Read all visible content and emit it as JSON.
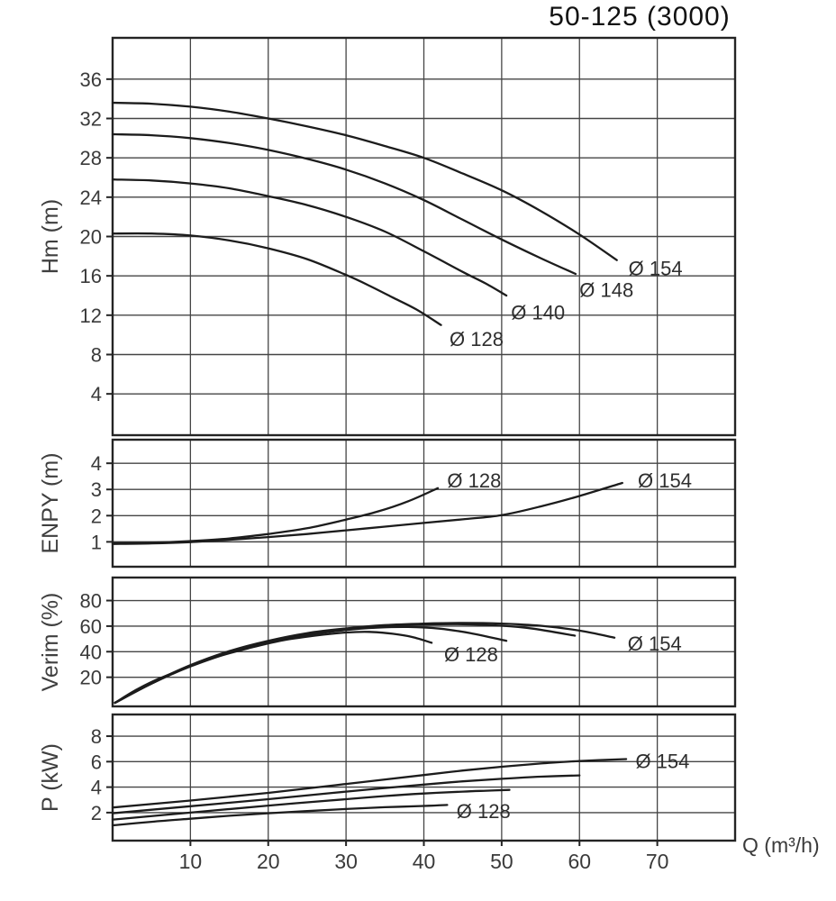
{
  "title": "50-125 (3000)",
  "x_axis": {
    "label": "Q (m³/h)",
    "ticks": [
      10,
      20,
      30,
      40,
      50,
      60,
      70
    ],
    "lim": [
      0,
      80
    ]
  },
  "colors": {
    "curve": "#1c1c1c",
    "grid": "#454545",
    "border": "#242424",
    "text": "#3a3a3a",
    "label": "#2e2e2e"
  },
  "chart_data": {
    "type": "line",
    "title": "50-125 (3000)",
    "xlabel": "Q (m³/h)",
    "xlim": [
      0,
      80
    ],
    "x_ticks": [
      10,
      20,
      30,
      40,
      50,
      60,
      70
    ],
    "panels": [
      {
        "id": "head",
        "ylabel": "Hm (m)",
        "yticks": [
          4,
          8,
          12,
          16,
          20,
          24,
          28,
          32,
          36
        ],
        "ylim": [
          -0.2,
          40.2
        ],
        "series": [
          {
            "name": "Ø 154",
            "points": [
              [
                0,
                33.6
              ],
              [
                5,
                33.5
              ],
              [
                10,
                33.2
              ],
              [
                15,
                32.7
              ],
              [
                20,
                32.0
              ],
              [
                25,
                31.2
              ],
              [
                30,
                30.3
              ],
              [
                35,
                29.2
              ],
              [
                40,
                28.0
              ],
              [
                45,
                26.4
              ],
              [
                50,
                24.7
              ],
              [
                55,
                22.6
              ],
              [
                60,
                20.2
              ],
              [
                64.8,
                17.6
              ]
            ],
            "label": {
              "text": "Ø 154",
              "x": 66.3,
              "y": 16.8
            }
          },
          {
            "name": "Ø 148",
            "points": [
              [
                0,
                30.4
              ],
              [
                5,
                30.3
              ],
              [
                10,
                30.0
              ],
              [
                15,
                29.5
              ],
              [
                20,
                28.8
              ],
              [
                25,
                27.9
              ],
              [
                30,
                26.8
              ],
              [
                35,
                25.4
              ],
              [
                40,
                23.7
              ],
              [
                45,
                21.7
              ],
              [
                50,
                19.7
              ],
              [
                55,
                17.8
              ],
              [
                59.5,
                16.2
              ]
            ],
            "label": {
              "text": "Ø 148",
              "x": 60.0,
              "y": 14.6
            }
          },
          {
            "name": "Ø 140",
            "points": [
              [
                0,
                25.8
              ],
              [
                5,
                25.7
              ],
              [
                10,
                25.4
              ],
              [
                15,
                24.9
              ],
              [
                20,
                24.1
              ],
              [
                25,
                23.2
              ],
              [
                30,
                22.0
              ],
              [
                35,
                20.5
              ],
              [
                40,
                18.5
              ],
              [
                45,
                16.4
              ],
              [
                48,
                15.2
              ],
              [
                50.6,
                14.0
              ]
            ],
            "label": {
              "text": "Ø 140",
              "x": 51.2,
              "y": 12.3
            }
          },
          {
            "name": "Ø 128",
            "points": [
              [
                0,
                20.3
              ],
              [
                5,
                20.3
              ],
              [
                10,
                20.1
              ],
              [
                15,
                19.6
              ],
              [
                20,
                18.8
              ],
              [
                25,
                17.7
              ],
              [
                30,
                16.1
              ],
              [
                33,
                15.0
              ],
              [
                36,
                13.8
              ],
              [
                39,
                12.6
              ],
              [
                42.2,
                11.0
              ]
            ],
            "label": {
              "text": "Ø 128",
              "x": 43.3,
              "y": 9.6
            }
          }
        ]
      },
      {
        "id": "npsh",
        "ylabel": "ENPY (m)",
        "yticks": [
          1,
          2,
          3,
          4
        ],
        "ylim": [
          0.05,
          4.9
        ],
        "series": [
          {
            "name": "Ø 128",
            "points": [
              [
                0,
                0.95
              ],
              [
                5,
                0.97
              ],
              [
                10,
                1.03
              ],
              [
                15,
                1.13
              ],
              [
                20,
                1.3
              ],
              [
                25,
                1.52
              ],
              [
                30,
                1.85
              ],
              [
                34,
                2.15
              ],
              [
                38,
                2.55
              ],
              [
                41.8,
                3.05
              ]
            ],
            "label": {
              "text": "Ø 128",
              "x": 43.0,
              "y": 3.35
            }
          },
          {
            "name": "Ø 154",
            "points": [
              [
                0,
                0.92
              ],
              [
                5,
                0.94
              ],
              [
                10,
                0.99
              ],
              [
                15,
                1.08
              ],
              [
                20,
                1.18
              ],
              [
                25,
                1.3
              ],
              [
                30,
                1.44
              ],
              [
                35,
                1.58
              ],
              [
                40,
                1.72
              ],
              [
                45,
                1.86
              ],
              [
                50,
                2.02
              ],
              [
                55,
                2.35
              ],
              [
                60,
                2.75
              ],
              [
                65.5,
                3.25
              ]
            ],
            "label": {
              "text": "Ø 154",
              "x": 67.5,
              "y": 3.35
            }
          }
        ]
      },
      {
        "id": "efficiency",
        "ylabel": "Verim (%)",
        "yticks": [
          20,
          40,
          60,
          80
        ],
        "ylim": [
          -2.8,
          98
        ],
        "series": [
          {
            "name": "Ø 128",
            "points": [
              [
                0.3,
                0
              ],
              [
                3,
                10
              ],
              [
                6,
                19
              ],
              [
                10,
                28.5
              ],
              [
                14,
                37
              ],
              [
                18,
                43.5
              ],
              [
                22,
                49
              ],
              [
                26,
                52.5
              ],
              [
                30,
                55
              ],
              [
                33,
                55.5
              ],
              [
                36,
                54
              ],
              [
                38.5,
                51.5
              ],
              [
                41,
                47
              ]
            ],
            "label": {
              "text": "Ø 128",
              "x": 42.6,
              "y": 38
            }
          },
          {
            "name": "Ø 140",
            "points": [
              [
                0.3,
                0
              ],
              [
                5,
                15
              ],
              [
                10,
                28.5
              ],
              [
                15,
                39.5
              ],
              [
                20,
                47.5
              ],
              [
                25,
                53
              ],
              [
                30,
                57
              ],
              [
                34,
                58.8
              ],
              [
                38,
                59.3
              ],
              [
                42,
                58
              ],
              [
                46,
                54.5
              ],
              [
                50.6,
                48.5
              ]
            ],
            "label": null
          },
          {
            "name": "Ø 148",
            "points": [
              [
                0.3,
                0
              ],
              [
                5,
                15
              ],
              [
                10,
                29
              ],
              [
                15,
                40
              ],
              [
                20,
                48
              ],
              [
                25,
                54
              ],
              [
                30,
                57.8
              ],
              [
                35,
                60.2
              ],
              [
                40,
                61.3
              ],
              [
                45,
                61.5
              ],
              [
                50,
                60.3
              ],
              [
                54,
                58
              ],
              [
                59.4,
                52.5
              ]
            ],
            "label": null
          },
          {
            "name": "Ø 154",
            "points": [
              [
                0.3,
                0
              ],
              [
                5,
                15.5
              ],
              [
                10,
                29.5
              ],
              [
                15,
                40.5
              ],
              [
                20,
                48.5
              ],
              [
                25,
                54.5
              ],
              [
                30,
                58.2
              ],
              [
                35,
                60.8
              ],
              [
                40,
                62
              ],
              [
                45,
                62.5
              ],
              [
                50,
                62
              ],
              [
                55,
                60.3
              ],
              [
                60,
                56.5
              ],
              [
                64.5,
                51
              ]
            ],
            "label": {
              "text": "Ø 154",
              "x": 66.2,
              "y": 46.5
            }
          }
        ]
      },
      {
        "id": "power",
        "ylabel": "P (kW)",
        "yticks": [
          2,
          4,
          6,
          8
        ],
        "ylim": [
          -0.2,
          9.7
        ],
        "series": [
          {
            "name": "Ø 128",
            "points": [
              [
                0,
                1.0
              ],
              [
                5,
                1.28
              ],
              [
                10,
                1.52
              ],
              [
                15,
                1.75
              ],
              [
                20,
                1.95
              ],
              [
                25,
                2.12
              ],
              [
                30,
                2.28
              ],
              [
                35,
                2.42
              ],
              [
                40,
                2.52
              ],
              [
                43,
                2.6
              ]
            ],
            "label": {
              "text": "Ø 128",
              "x": 44.2,
              "y": 2.15
            }
          },
          {
            "name": "Ø 140",
            "points": [
              [
                0,
                1.45
              ],
              [
                10,
                2.0
              ],
              [
                20,
                2.55
              ],
              [
                30,
                3.05
              ],
              [
                35,
                3.3
              ],
              [
                40,
                3.5
              ],
              [
                45,
                3.65
              ],
              [
                48,
                3.72
              ],
              [
                51,
                3.78
              ]
            ],
            "label": null
          },
          {
            "name": "Ø 148",
            "points": [
              [
                0,
                1.95
              ],
              [
                10,
                2.5
              ],
              [
                20,
                3.05
              ],
              [
                30,
                3.65
              ],
              [
                40,
                4.2
              ],
              [
                45,
                4.45
              ],
              [
                50,
                4.65
              ],
              [
                55,
                4.82
              ],
              [
                60,
                4.92
              ]
            ],
            "label": null
          },
          {
            "name": "Ø 154",
            "points": [
              [
                0,
                2.4
              ],
              [
                10,
                2.95
              ],
              [
                20,
                3.55
              ],
              [
                30,
                4.25
              ],
              [
                40,
                4.95
              ],
              [
                45,
                5.3
              ],
              [
                50,
                5.6
              ],
              [
                55,
                5.85
              ],
              [
                60,
                6.05
              ],
              [
                66,
                6.2
              ]
            ],
            "label": {
              "text": "Ø 154",
              "x": 67.2,
              "y": 6.05
            }
          }
        ]
      }
    ]
  }
}
